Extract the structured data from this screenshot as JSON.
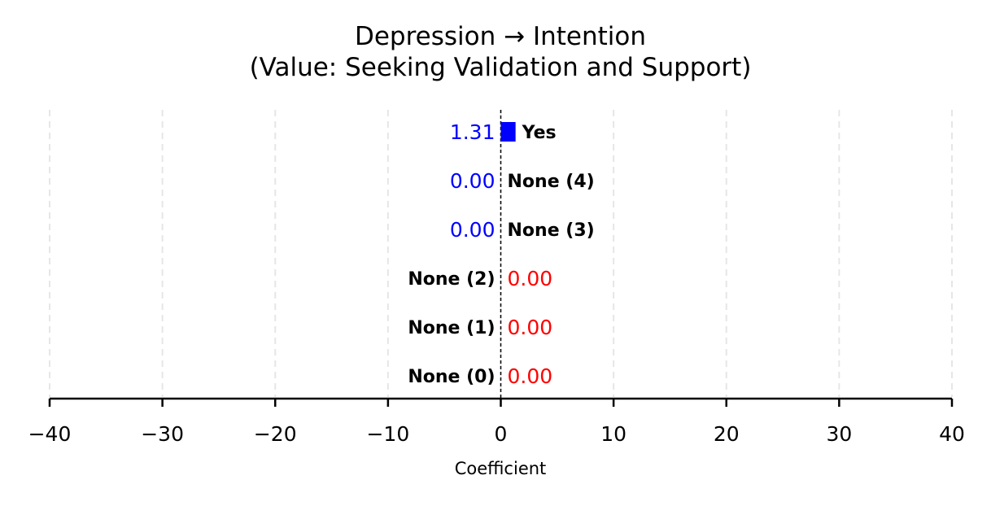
{
  "chart_data": {
    "type": "bar",
    "orientation": "horizontal",
    "title": "Depression → Intention",
    "subtitle": "(Value: Seeking Validation and Support)",
    "xlabel": "Coefficient",
    "ylabel": "",
    "xlim": [
      -40,
      40
    ],
    "xticks": [
      -40,
      -30,
      -20,
      -10,
      0,
      10,
      20,
      30,
      40
    ],
    "xtick_labels": [
      "−40",
      "−30",
      "−20",
      "−10",
      "0",
      "10",
      "20",
      "30",
      "40"
    ],
    "grid": true,
    "categories": [
      "Yes",
      "None (4)",
      "None (3)",
      "None (2)",
      "None (1)",
      "None (0)"
    ],
    "values": [
      1.31,
      0.0,
      0.0,
      0.0,
      0.0,
      0.0
    ],
    "value_labels": [
      "1.31",
      "0.00",
      "0.00",
      "0.00",
      "0.00",
      "0.00"
    ],
    "label_side": [
      "right",
      "right",
      "right",
      "left",
      "left",
      "left"
    ],
    "colors": {
      "positive": "#0000ff",
      "negative": "#ff0000",
      "grid": "#e6e6e6",
      "axis": "#000000"
    }
  }
}
